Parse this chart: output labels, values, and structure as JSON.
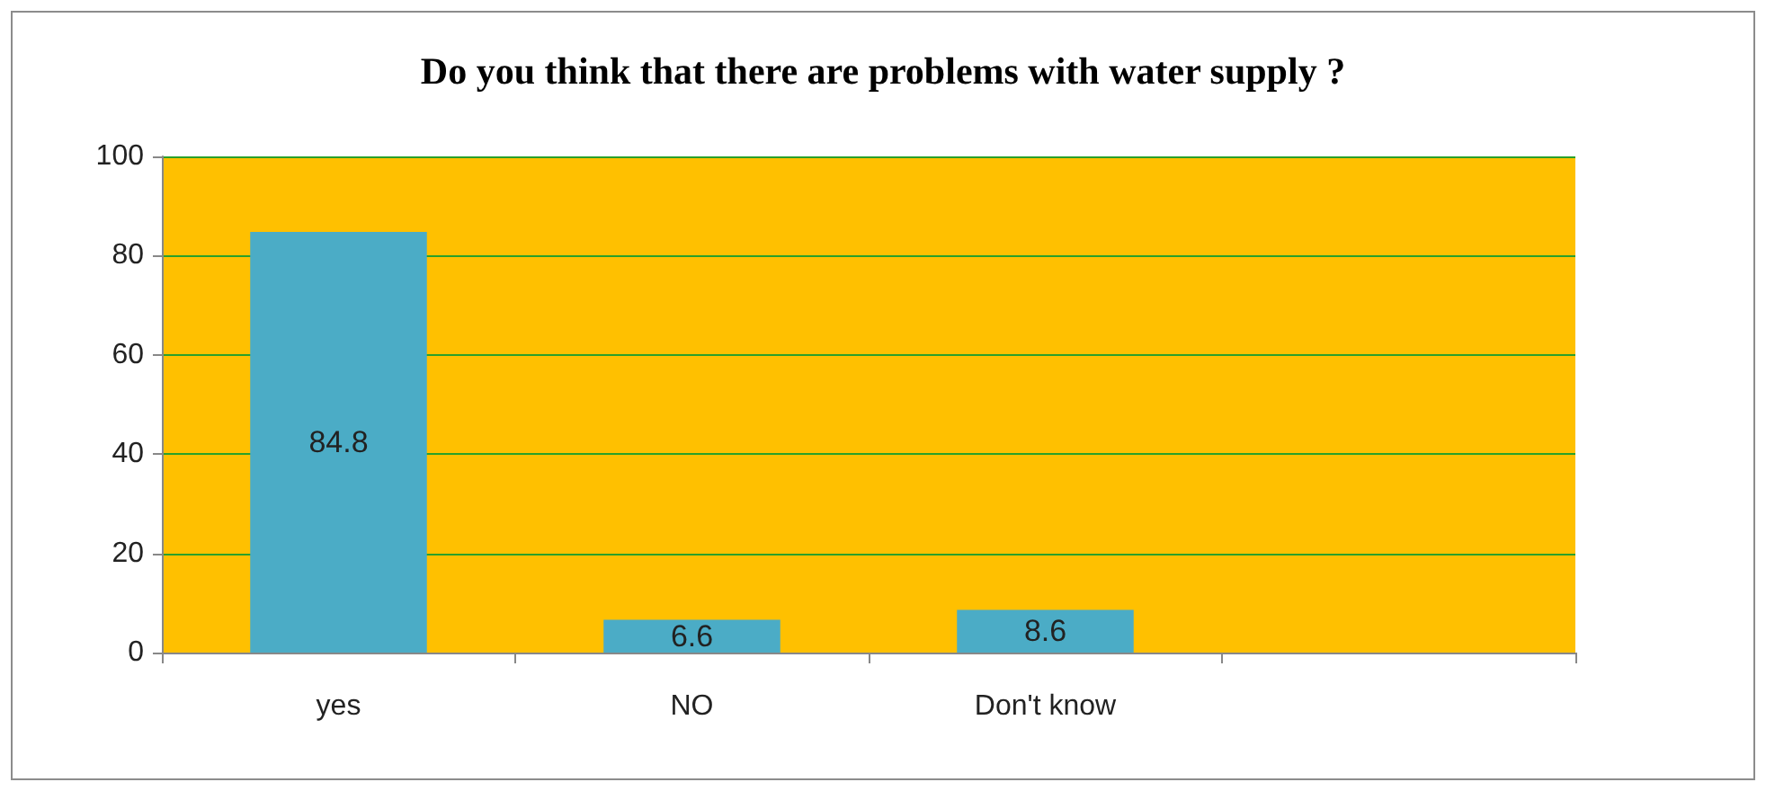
{
  "chart_data": {
    "type": "bar",
    "title": "Do you think that there are problems with water supply ?",
    "categories": [
      "yes",
      "NO",
      "Don't know",
      null
    ],
    "values": [
      84.8,
      6.6,
      8.6,
      null
    ],
    "color": "#4bacc6",
    "ylim": [
      0,
      100
    ],
    "yticks": [
      0,
      20,
      40,
      60,
      80,
      100
    ],
    "grid": "y",
    "data_labels": true
  }
}
